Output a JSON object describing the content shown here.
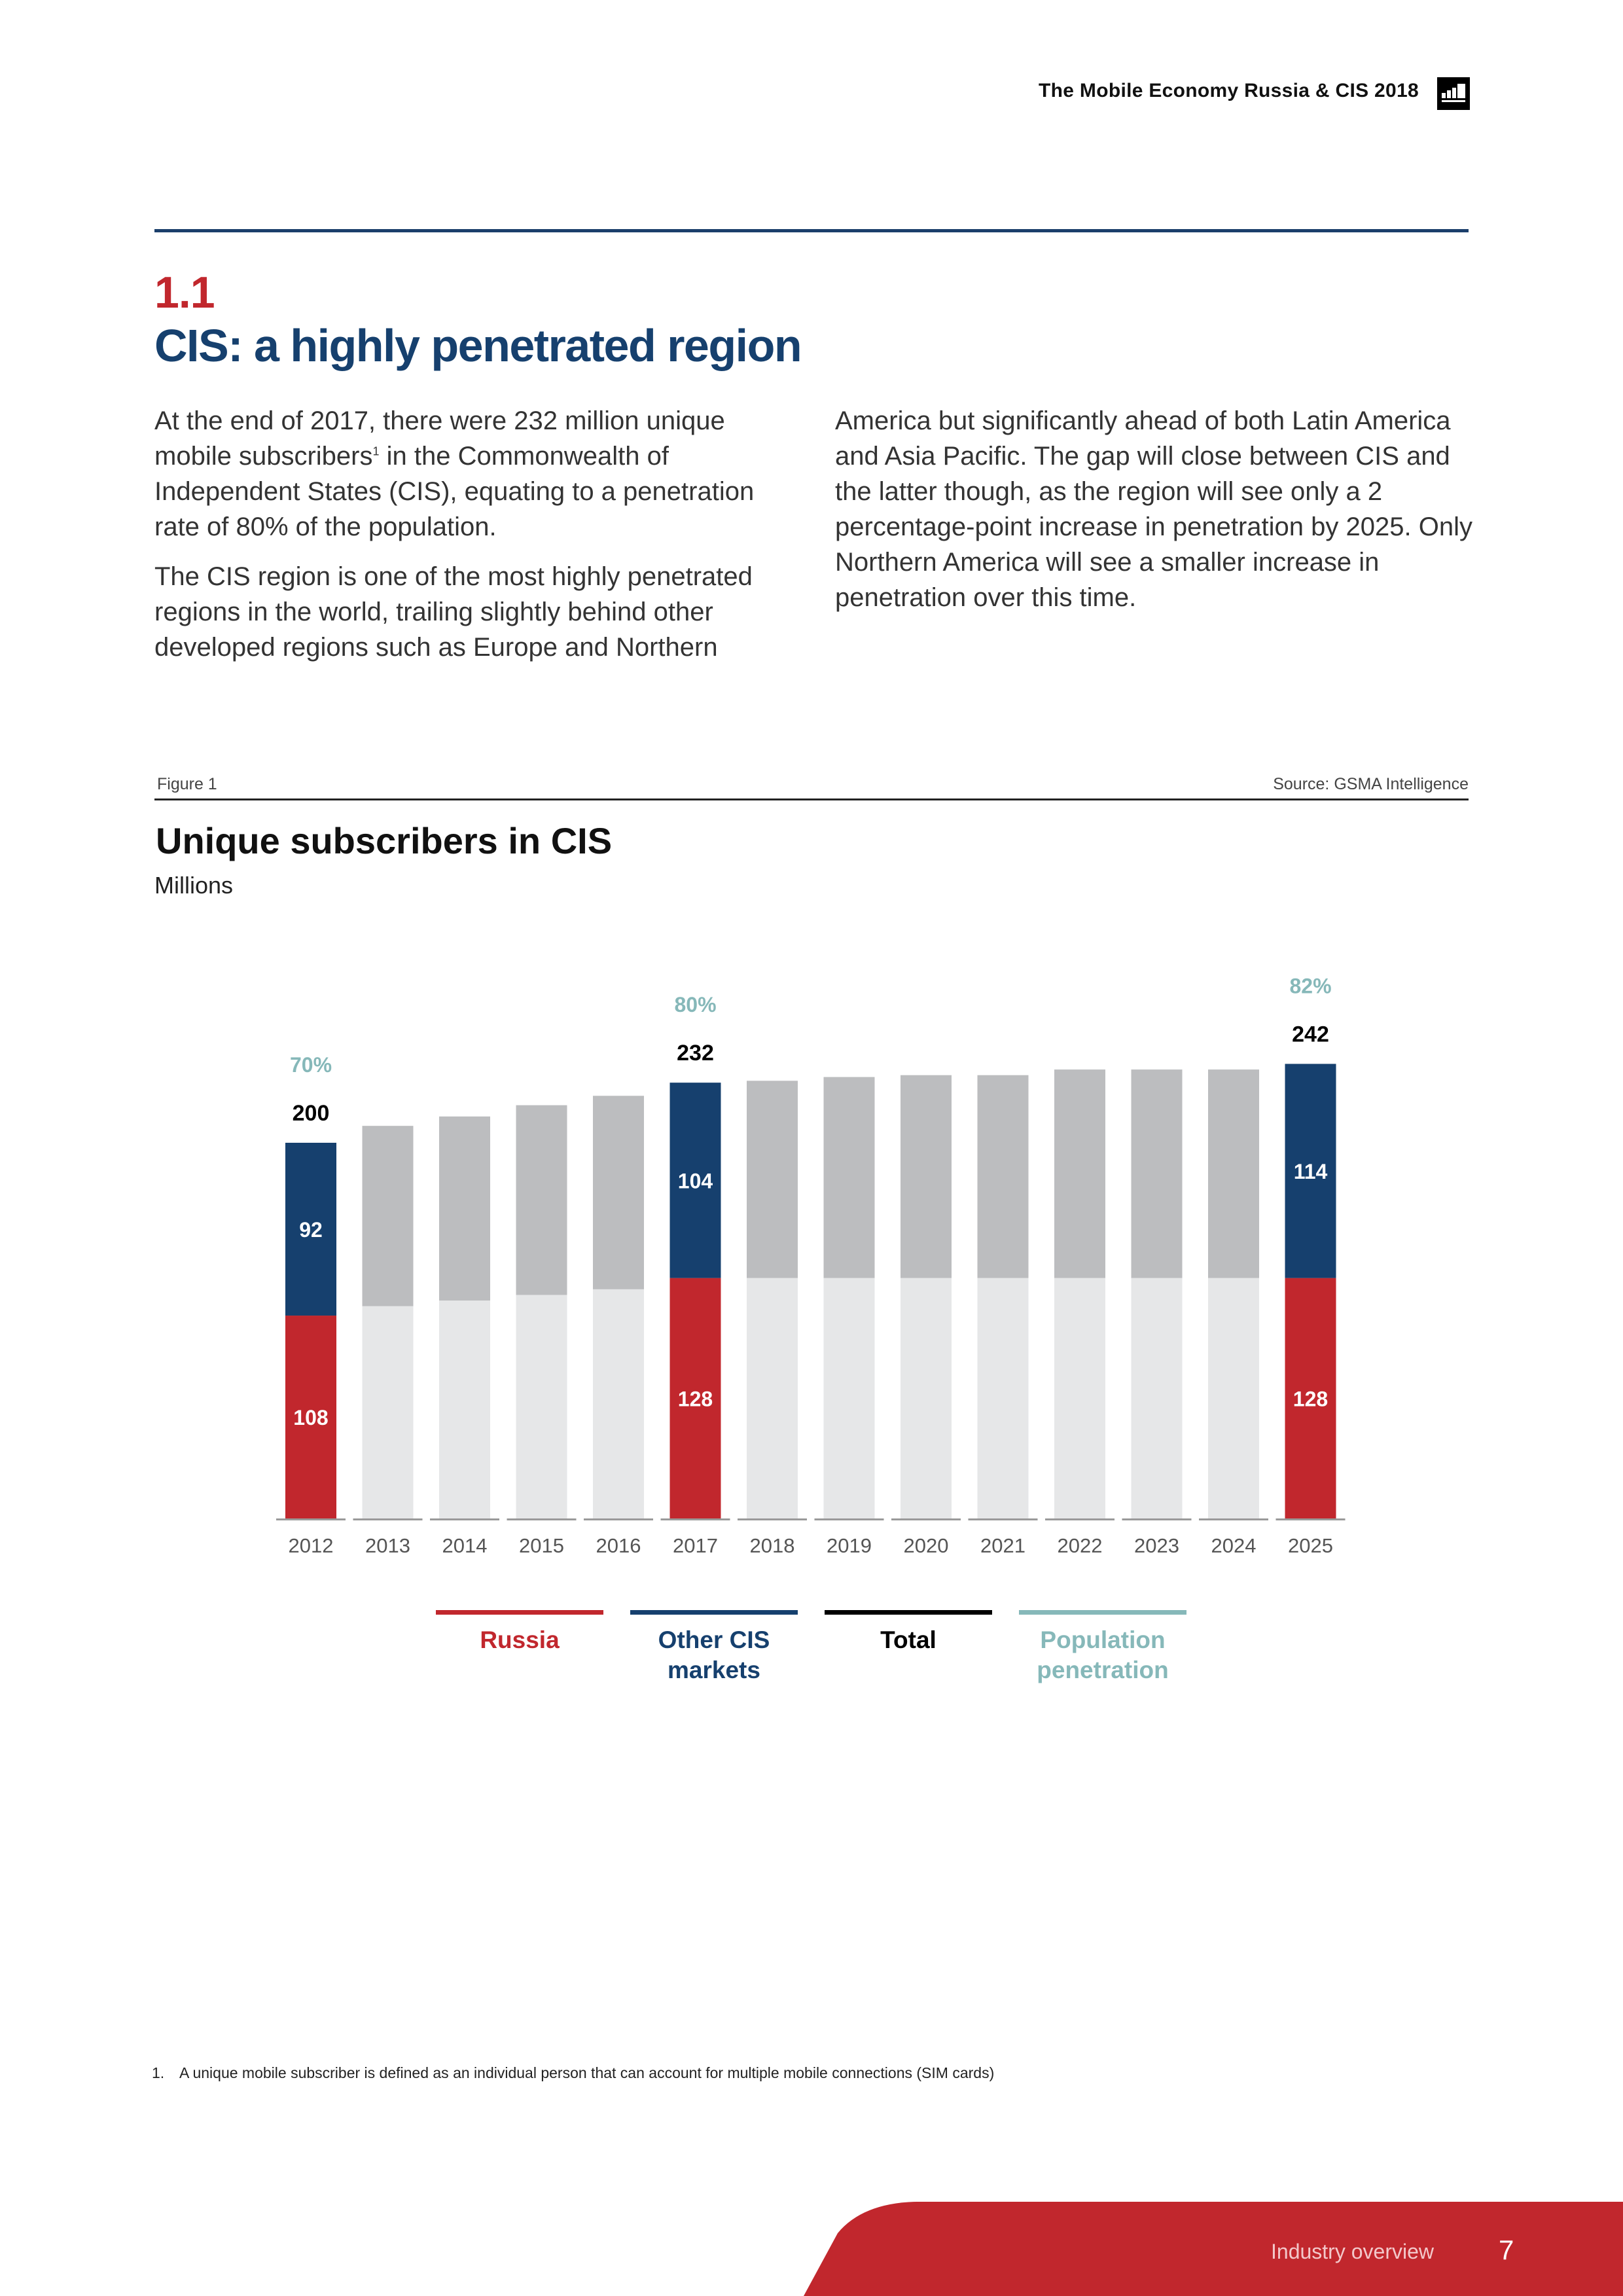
{
  "header": {
    "title": "The Mobile Economy Russia & CIS 2018"
  },
  "section": {
    "number": "1.1",
    "title": "CIS: a highly penetrated region"
  },
  "body": {
    "p1_before": "At the end of 2017, there were 232 million unique mobile subscribers",
    "p1_sup": "1",
    "p1_after": " in the Commonwealth of Independent States (CIS), equating to a penetration rate of 80% of the population.",
    "p2": "The CIS region is one of the most highly penetrated regions in the world, trailing slightly behind other developed regions such as Europe and Northern",
    "p3": "America but significantly ahead of both Latin America and Asia Pacific. The gap will close between CIS and the latter though, as the region will see only a 2 percentage-point increase in penetration by 2025. Only Northern America will see a smaller increase in penetration over this time."
  },
  "figure": {
    "label": "Figure 1",
    "source": "Source: GSMA Intelligence"
  },
  "chart_data": {
    "type": "bar",
    "stacked": true,
    "title": "Unique subscribers in CIS",
    "unit": "Millions",
    "categories": [
      "2012",
      "2013",
      "2014",
      "2015",
      "2016",
      "2017",
      "2018",
      "2019",
      "2020",
      "2021",
      "2022",
      "2023",
      "2024",
      "2025"
    ],
    "series": [
      {
        "name": "Russia",
        "values": [
          108,
          113,
          116,
          119,
          122,
          128,
          128,
          128,
          128,
          128,
          128,
          128,
          128,
          128
        ]
      },
      {
        "name": "Other CIS markets",
        "values": [
          92,
          96,
          98,
          101,
          103,
          104,
          105,
          107,
          108,
          108,
          111,
          111,
          111,
          114
        ]
      }
    ],
    "totals": [
      200,
      209,
      214,
      220,
      225,
      232,
      233,
      235,
      236,
      236,
      239,
      239,
      239,
      242
    ],
    "highlighted": [
      "2012",
      "2017",
      "2025"
    ],
    "segment_labels": {
      "2012": {
        "russia": "108",
        "other": "92",
        "total": "200",
        "penetration": "70%"
      },
      "2017": {
        "russia": "128",
        "other": "104",
        "total": "232",
        "penetration": "80%"
      },
      "2025": {
        "russia": "128",
        "other": "114",
        "total": "242",
        "penetration": "82%"
      }
    },
    "ylim": [
      0,
      250
    ],
    "legend": [
      {
        "name": "Russia",
        "color": "#c1272d"
      },
      {
        "name": "Other CIS markets",
        "color": "#16406e"
      },
      {
        "name": "Total",
        "color": "#000000"
      },
      {
        "name": "Population penetration",
        "color": "#86b8b9"
      }
    ],
    "colors": {
      "russia": "#c1272d",
      "other": "#16406e",
      "russia_muted": "#e6e7e8",
      "other_muted": "#bcbdbf",
      "penetration": "#86b8b9",
      "total": "#000000"
    }
  },
  "footnote": {
    "number": "1.",
    "text": "A unique mobile subscriber is defined as an individual person that can account for multiple mobile connections (SIM cards)"
  },
  "footer": {
    "section": "Industry overview",
    "page": "7"
  }
}
